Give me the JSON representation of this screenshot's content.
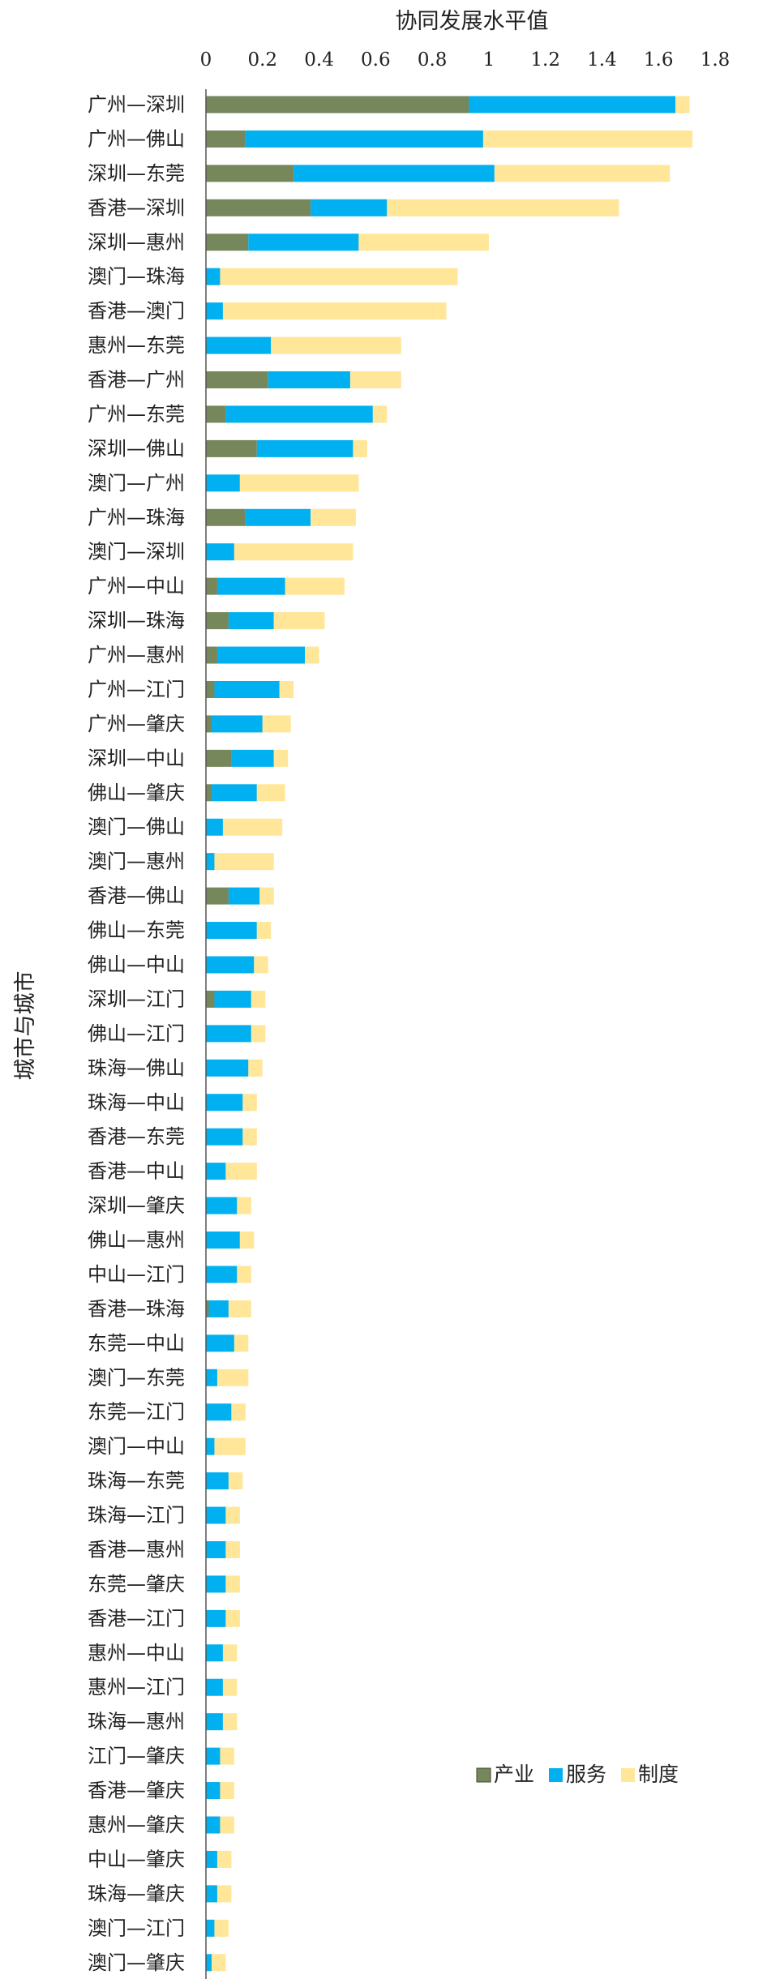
{
  "chart_data": {
    "type": "bar",
    "orientation": "horizontal",
    "stacked": true,
    "xlabel": "协同发展水平值",
    "ylabel": "城市与城市",
    "xlim": [
      0,
      1.8
    ],
    "xticks": [
      "0",
      "0.2",
      "0.4",
      "0.6",
      "0.8",
      "1",
      "1.2",
      "1.4",
      "1.6",
      "1.8"
    ],
    "grid": false,
    "legend_position": "bottom-right",
    "categories": [
      "广州—深圳",
      "广州—佛山",
      "深圳—东莞",
      "香港—深圳",
      "深圳—惠州",
      "澳门—珠海",
      "香港—澳门",
      "惠州—东莞",
      "香港—广州",
      "广州—东莞",
      "深圳—佛山",
      "澳门—广州",
      "广州—珠海",
      "澳门—深圳",
      "广州—中山",
      "深圳—珠海",
      "广州—惠州",
      "广州—江门",
      "广州—肇庆",
      "深圳—中山",
      "佛山—肇庆",
      "澳门—佛山",
      "澳门—惠州",
      "香港—佛山",
      "佛山—东莞",
      "佛山—中山",
      "深圳—江门",
      "佛山—江门",
      "珠海—佛山",
      "珠海—中山",
      "香港—东莞",
      "香港—中山",
      "深圳—肇庆",
      "佛山—惠州",
      "中山—江门",
      "香港—珠海",
      "东莞—中山",
      "澳门—东莞",
      "东莞—江门",
      "澳门—中山",
      "珠海—东莞",
      "珠海—江门",
      "香港—惠州",
      "东莞—肇庆",
      "香港—江门",
      "惠州—中山",
      "惠州—江门",
      "珠海—惠州",
      "江门—肇庆",
      "香港—肇庆",
      "惠州—肇庆",
      "中山—肇庆",
      "珠海—肇庆",
      "澳门—江门",
      "澳门—肇庆"
    ],
    "series": [
      {
        "name": "产业",
        "color": "#76875b",
        "values": [
          0.93,
          0.14,
          0.31,
          0.37,
          0.15,
          0.0,
          0.0,
          0.0,
          0.22,
          0.07,
          0.18,
          0.0,
          0.14,
          0.0,
          0.04,
          0.08,
          0.04,
          0.03,
          0.02,
          0.09,
          0.02,
          0.0,
          0.0,
          0.08,
          0.0,
          0.0,
          0.03,
          0.0,
          0.0,
          0.0,
          0.0,
          0.0,
          0.0,
          0.0,
          0.0,
          0.01,
          0.0,
          0.0,
          0.0,
          0.0,
          0.0,
          0.0,
          0.0,
          0.0,
          0.0,
          0.0,
          0.0,
          0.0,
          0.0,
          0.0,
          0.0,
          0.0,
          0.0,
          0.0,
          0.0
        ]
      },
      {
        "name": "服务",
        "color": "#00b0f0",
        "values": [
          0.73,
          0.84,
          0.71,
          0.27,
          0.39,
          0.05,
          0.06,
          0.23,
          0.29,
          0.52,
          0.34,
          0.12,
          0.23,
          0.1,
          0.24,
          0.16,
          0.31,
          0.23,
          0.18,
          0.15,
          0.16,
          0.06,
          0.03,
          0.11,
          0.18,
          0.17,
          0.13,
          0.16,
          0.15,
          0.13,
          0.13,
          0.07,
          0.11,
          0.12,
          0.11,
          0.07,
          0.1,
          0.04,
          0.09,
          0.03,
          0.08,
          0.07,
          0.07,
          0.07,
          0.07,
          0.06,
          0.06,
          0.06,
          0.05,
          0.05,
          0.05,
          0.04,
          0.04,
          0.03,
          0.02
        ]
      },
      {
        "name": "制度",
        "color": "#ffe699",
        "values": [
          0.05,
          0.74,
          0.62,
          0.82,
          0.46,
          0.84,
          0.79,
          0.46,
          0.18,
          0.05,
          0.05,
          0.42,
          0.16,
          0.42,
          0.21,
          0.18,
          0.05,
          0.05,
          0.1,
          0.05,
          0.1,
          0.21,
          0.21,
          0.05,
          0.05,
          0.05,
          0.05,
          0.05,
          0.05,
          0.05,
          0.05,
          0.11,
          0.05,
          0.05,
          0.05,
          0.08,
          0.05,
          0.11,
          0.05,
          0.11,
          0.05,
          0.05,
          0.05,
          0.05,
          0.05,
          0.05,
          0.05,
          0.05,
          0.05,
          0.05,
          0.05,
          0.05,
          0.05,
          0.05,
          0.05
        ]
      }
    ]
  }
}
